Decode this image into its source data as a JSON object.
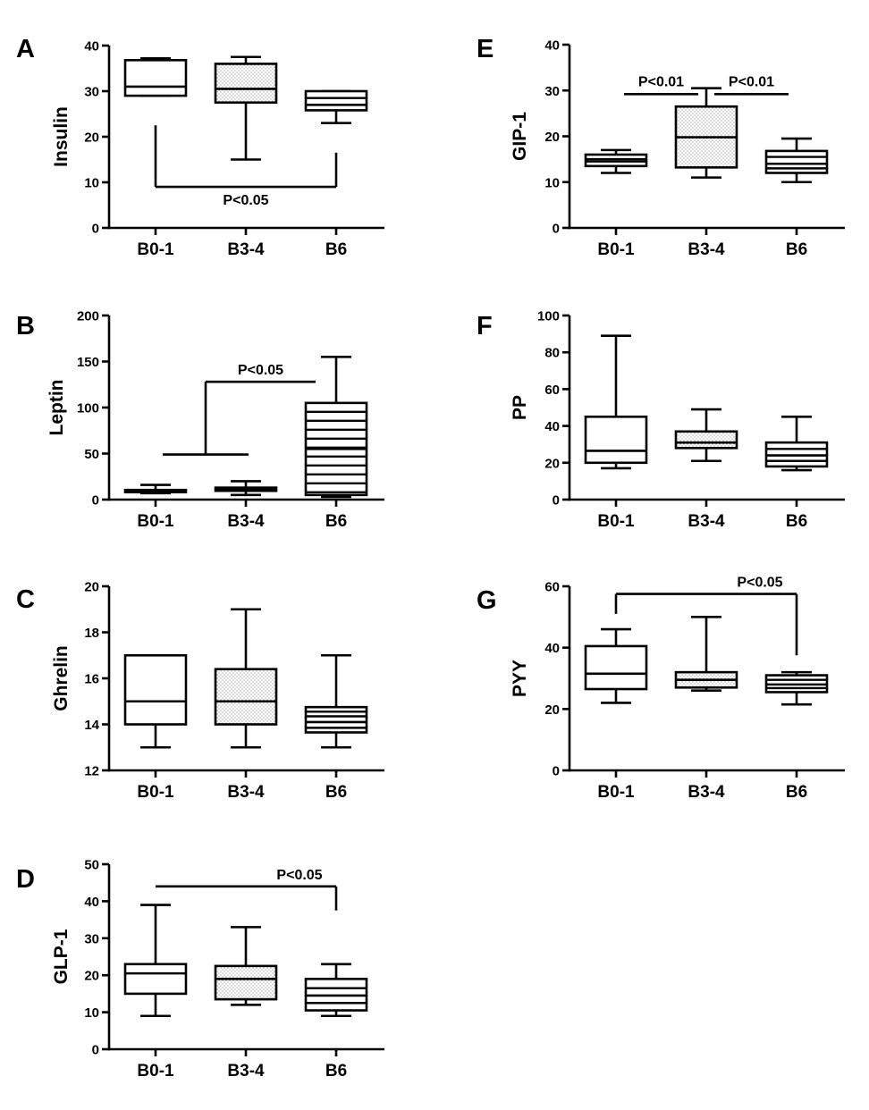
{
  "chart_data": [
    {
      "type": "box",
      "panel_label": "A",
      "ylabel": "Insulin",
      "ylim": [
        0,
        40
      ],
      "yticks": [
        0,
        10,
        20,
        30,
        40
      ],
      "categories": [
        "B0-1",
        "B3-4",
        "B6"
      ],
      "boxes": [
        {
          "whisker_low": 29,
          "q1": 29,
          "median": 31,
          "q3": 36.8,
          "whisker_high": 37.2,
          "fill": "white"
        },
        {
          "whisker_low": 15,
          "q1": 27.5,
          "median": 30.5,
          "q3": 36,
          "whisker_high": 37.5,
          "fill": "dots"
        },
        {
          "whisker_low": 23,
          "q1": 25.8,
          "median": 27,
          "q3": 30,
          "whisker_high": 30,
          "extra_lines": [
            28.5
          ],
          "fill": "white"
        }
      ],
      "annotations": [
        {
          "text": "P<0.05",
          "from": 0,
          "to": 2,
          "bar_y": 9,
          "from_y": 22.5,
          "to_y": 16.5,
          "label_side": "below"
        }
      ]
    },
    {
      "type": "box",
      "panel_label": "B",
      "ylabel": "Leptin",
      "ylim": [
        0,
        200
      ],
      "yticks": [
        0,
        50,
        100,
        150,
        200
      ],
      "categories": [
        "B0-1",
        "B3-4",
        "B6"
      ],
      "boxes": [
        {
          "whisker_low": 7,
          "q1": 8,
          "median": 9.5,
          "q3": 10.5,
          "whisker_high": 16,
          "fill": "white"
        },
        {
          "whisker_low": 5,
          "q1": 9.5,
          "median": 11.5,
          "q3": 13,
          "whisker_high": 20,
          "extra_lines": [
            10.5,
            12.5
          ],
          "fill": "white"
        },
        {
          "whisker_low": 3,
          "q1": 5,
          "median": 55,
          "q3": 105,
          "whisker_high": 155,
          "fill": "hlines"
        }
      ],
      "annotations": [
        {
          "text": "P<0.05",
          "type": "nested",
          "group_from": 0,
          "group_to": 1,
          "group_y": 49,
          "to": 2,
          "bar_y": 128,
          "to_y": 128
        }
      ]
    },
    {
      "type": "box",
      "panel_label": "C",
      "ylabel": "Ghrelin",
      "ylim": [
        12,
        20
      ],
      "yticks": [
        12,
        14,
        16,
        18,
        20
      ],
      "categories": [
        "B0-1",
        "B3-4",
        "B6"
      ],
      "boxes": [
        {
          "whisker_low": 13,
          "q1": 14,
          "median": 15,
          "q3": 17,
          "whisker_high": 17,
          "fill": "white"
        },
        {
          "whisker_low": 13,
          "q1": 14,
          "median": 15,
          "q3": 16.4,
          "whisker_high": 19,
          "fill": "dots"
        },
        {
          "whisker_low": 13,
          "q1": 13.65,
          "median": 14.1,
          "q3": 14.75,
          "whisker_high": 17,
          "extra_lines": [
            13.85,
            14.35,
            14.55
          ],
          "fill": "white"
        }
      ],
      "annotations": []
    },
    {
      "type": "box",
      "panel_label": "D",
      "ylabel": "GLP-1",
      "ylim": [
        0,
        50
      ],
      "yticks": [
        0,
        10,
        20,
        30,
        40,
        50
      ],
      "categories": [
        "B0-1",
        "B3-4",
        "B6"
      ],
      "boxes": [
        {
          "whisker_low": 9,
          "q1": 15,
          "median": 20.5,
          "q3": 23,
          "whisker_high": 39,
          "fill": "white"
        },
        {
          "whisker_low": 12,
          "q1": 13.5,
          "median": 19,
          "q3": 22.5,
          "whisker_high": 33,
          "fill": "dots"
        },
        {
          "whisker_low": 9,
          "q1": 10.5,
          "median": 14.5,
          "q3": 19,
          "whisker_high": 23,
          "extra_lines": [
            12.5,
            16.5
          ],
          "fill": "white"
        }
      ],
      "annotations": [
        {
          "text": "P<0.05",
          "from": 0,
          "to": 2,
          "bar_y": 44,
          "from_y": 44,
          "to_y": 37.5,
          "label_side": "above"
        }
      ]
    },
    {
      "type": "box",
      "panel_label": "E",
      "ylabel": "GIP-1",
      "ylim": [
        0,
        40
      ],
      "yticks": [
        0,
        10,
        20,
        30,
        40
      ],
      "categories": [
        "B0-1",
        "B3-4",
        "B6"
      ],
      "boxes": [
        {
          "whisker_low": 12,
          "q1": 13.5,
          "median": 15,
          "q3": 16,
          "whisker_high": 17,
          "extra_lines": [
            14.5
          ],
          "fill": "white"
        },
        {
          "whisker_low": 11,
          "q1": 13.2,
          "median": 19.8,
          "q3": 26.5,
          "whisker_high": 30.5,
          "fill": "dots"
        },
        {
          "whisker_low": 10,
          "q1": 12,
          "median": 14,
          "q3": 16.8,
          "whisker_high": 19.5,
          "extra_lines": [
            13,
            15.5
          ],
          "fill": "white"
        }
      ],
      "annotations": [
        {
          "text": "P<0.01",
          "from": 0,
          "to": 1,
          "bar_y": 29.2,
          "label_side": "above",
          "plain": true
        },
        {
          "text": "P<0.01",
          "from": 1,
          "to": 2,
          "bar_y": 29.2,
          "label_side": "above",
          "plain": true
        }
      ]
    },
    {
      "type": "box",
      "panel_label": "F",
      "ylabel": "PP",
      "ylim": [
        0,
        100
      ],
      "yticks": [
        0,
        20,
        40,
        60,
        80,
        100
      ],
      "categories": [
        "B0-1",
        "B3-4",
        "B6"
      ],
      "boxes": [
        {
          "whisker_low": 17,
          "q1": 20,
          "median": 26.5,
          "q3": 45,
          "whisker_high": 89,
          "fill": "white"
        },
        {
          "whisker_low": 21,
          "q1": 28,
          "median": 31,
          "q3": 37,
          "whisker_high": 49,
          "fill": "dots"
        },
        {
          "whisker_low": 16,
          "q1": 18,
          "median": 24,
          "q3": 31,
          "whisker_high": 45,
          "extra_lines": [
            21,
            27.5
          ],
          "fill": "white"
        }
      ],
      "annotations": []
    },
    {
      "type": "box",
      "panel_label": "G",
      "ylabel": "PYY",
      "ylim": [
        0,
        60
      ],
      "yticks": [
        0,
        20,
        40,
        60
      ],
      "categories": [
        "B0-1",
        "B3-4",
        "B6"
      ],
      "boxes": [
        {
          "whisker_low": 22,
          "q1": 26.5,
          "median": 31.5,
          "q3": 40.5,
          "whisker_high": 46,
          "fill": "white"
        },
        {
          "whisker_low": 26,
          "q1": 27,
          "median": 29.5,
          "q3": 32,
          "whisker_high": 50,
          "fill": "dots"
        },
        {
          "whisker_low": 21.5,
          "q1": 25.5,
          "median": 28,
          "q3": 31,
          "whisker_high": 32,
          "extra_lines": [
            26.8,
            29.5
          ],
          "fill": "white"
        }
      ],
      "annotations": [
        {
          "text": "P<0.05",
          "from": 0,
          "to": 2,
          "bar_y": 57.5,
          "from_y": 51,
          "to_y": 37.5,
          "label_side": "above"
        }
      ]
    }
  ]
}
